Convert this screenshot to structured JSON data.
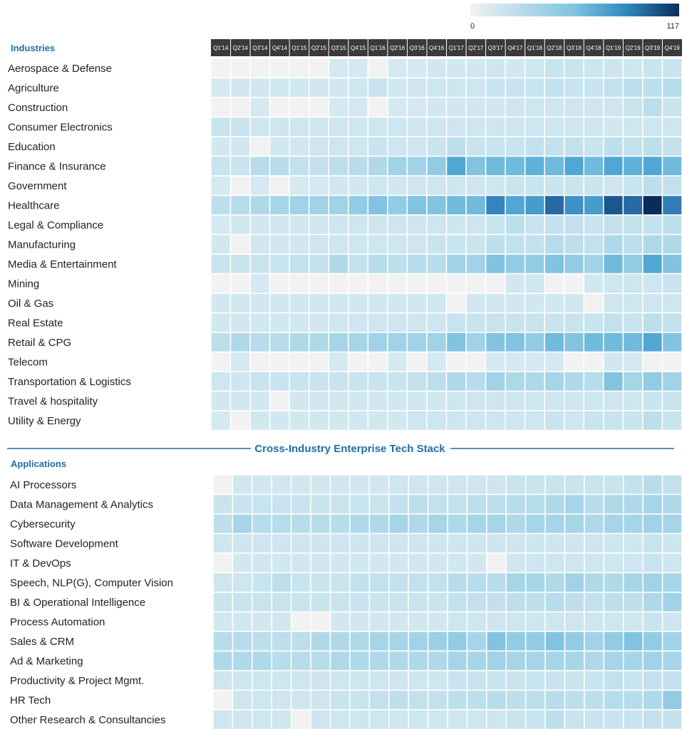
{
  "chart_data": {
    "type": "heatmap",
    "columns": [
      "Q1'14",
      "Q2'14",
      "Q3'14",
      "Q4'14",
      "Q1'15",
      "Q2'15",
      "Q3'15",
      "Q4'15",
      "Q1'16",
      "Q2'16",
      "Q3'16",
      "Q4'16",
      "Q1'17",
      "Q2'17",
      "Q3'17",
      "Q4'17",
      "Q1'18",
      "Q2'18",
      "Q3'18",
      "Q4'18",
      "Q1'19",
      "Q2'19",
      "Q3'19",
      "Q4'19"
    ],
    "color_scale": {
      "min": 0,
      "max": 117,
      "min_label": "0",
      "max_label": "117",
      "low_color": "#f2f2f2",
      "high_color": "#0b2e5c"
    },
    "divider_title": "Cross-Industry Enterprise Tech Stack",
    "sections": [
      {
        "title": "Industries",
        "rows": [
          {
            "label": "Aerospace & Defense",
            "values": [
              0,
              0,
              0,
              0,
              0,
              0,
              8,
              8,
              0,
              8,
              8,
              10,
              10,
              10,
              12,
              10,
              12,
              15,
              15,
              13,
              13,
              12,
              15,
              15
            ]
          },
          {
            "label": "Agriculture",
            "values": [
              8,
              10,
              10,
              10,
              10,
              10,
              10,
              12,
              15,
              10,
              12,
              12,
              12,
              12,
              15,
              15,
              15,
              18,
              15,
              15,
              18,
              20,
              20,
              22
            ]
          },
          {
            "label": "Construction",
            "values": [
              0,
              0,
              8,
              0,
              0,
              0,
              8,
              8,
              0,
              8,
              8,
              10,
              10,
              10,
              10,
              12,
              12,
              12,
              12,
              12,
              12,
              15,
              20,
              15
            ]
          },
          {
            "label": "Consumer Electronics",
            "values": [
              15,
              15,
              12,
              12,
              12,
              12,
              12,
              12,
              12,
              12,
              12,
              12,
              12,
              12,
              12,
              12,
              12,
              12,
              12,
              12,
              10,
              12,
              12,
              12
            ]
          },
          {
            "label": "Education",
            "values": [
              10,
              10,
              0,
              10,
              10,
              12,
              12,
              12,
              15,
              12,
              12,
              15,
              20,
              15,
              15,
              15,
              18,
              18,
              18,
              15,
              20,
              18,
              20,
              18
            ]
          },
          {
            "label": "Finance & Insurance",
            "values": [
              15,
              15,
              22,
              22,
              18,
              18,
              20,
              22,
              25,
              30,
              30,
              35,
              55,
              40,
              45,
              45,
              50,
              45,
              55,
              45,
              55,
              50,
              55,
              45
            ]
          },
          {
            "label": "Government",
            "values": [
              8,
              0,
              8,
              0,
              8,
              8,
              10,
              10,
              12,
              10,
              12,
              12,
              12,
              12,
              12,
              15,
              15,
              15,
              15,
              15,
              12,
              15,
              20,
              18
            ]
          },
          {
            "label": "Healthcare",
            "values": [
              20,
              22,
              25,
              28,
              30,
              30,
              30,
              35,
              40,
              35,
              40,
              40,
              45,
              45,
              70,
              55,
              60,
              85,
              65,
              60,
              95,
              85,
              117,
              75
            ]
          },
          {
            "label": "Legal & Compliance",
            "values": [
              8,
              10,
              10,
              10,
              10,
              10,
              12,
              12,
              12,
              12,
              12,
              12,
              12,
              12,
              15,
              20,
              15,
              18,
              18,
              15,
              18,
              18,
              18,
              20
            ]
          },
          {
            "label": "Manufacturing",
            "values": [
              10,
              0,
              10,
              10,
              10,
              12,
              12,
              12,
              12,
              12,
              12,
              15,
              15,
              15,
              20,
              18,
              18,
              22,
              20,
              18,
              25,
              20,
              25,
              25
            ]
          },
          {
            "label": "Media & Entertainment",
            "values": [
              15,
              15,
              15,
              15,
              18,
              18,
              25,
              18,
              22,
              20,
              22,
              22,
              30,
              30,
              40,
              35,
              35,
              40,
              35,
              30,
              45,
              35,
              55,
              40
            ]
          },
          {
            "label": "Mining",
            "values": [
              0,
              0,
              8,
              0,
              0,
              0,
              0,
              0,
              0,
              0,
              0,
              0,
              0,
              0,
              0,
              10,
              10,
              0,
              0,
              10,
              12,
              12,
              12,
              15
            ]
          },
          {
            "label": "Oil & Gas",
            "values": [
              10,
              10,
              10,
              10,
              10,
              10,
              10,
              10,
              10,
              10,
              10,
              10,
              0,
              10,
              10,
              10,
              10,
              10,
              10,
              0,
              12,
              12,
              12,
              12
            ]
          },
          {
            "label": "Real Estate",
            "values": [
              10,
              10,
              10,
              10,
              10,
              10,
              12,
              12,
              12,
              12,
              12,
              12,
              15,
              15,
              15,
              15,
              15,
              15,
              15,
              15,
              18,
              15,
              20,
              18
            ]
          },
          {
            "label": "Retail & CPG",
            "values": [
              20,
              25,
              22,
              22,
              25,
              25,
              28,
              28,
              30,
              30,
              30,
              30,
              40,
              30,
              40,
              40,
              35,
              45,
              40,
              45,
              45,
              45,
              55,
              40
            ]
          },
          {
            "label": "Telecom",
            "values": [
              0,
              8,
              0,
              0,
              0,
              0,
              8,
              0,
              0,
              8,
              0,
              8,
              0,
              0,
              8,
              8,
              8,
              8,
              0,
              0,
              10,
              8,
              0,
              0
            ]
          },
          {
            "label": "Transportation & Logistics",
            "values": [
              12,
              12,
              15,
              15,
              15,
              15,
              15,
              15,
              15,
              15,
              18,
              20,
              25,
              22,
              30,
              25,
              25,
              28,
              25,
              22,
              40,
              28,
              35,
              30
            ]
          },
          {
            "label": "Travel & hospitality",
            "values": [
              10,
              10,
              10,
              0,
              10,
              10,
              10,
              10,
              10,
              10,
              10,
              10,
              12,
              12,
              12,
              12,
              12,
              12,
              12,
              12,
              12,
              12,
              15,
              15
            ]
          },
          {
            "label": "Utility & Energy",
            "values": [
              8,
              0,
              10,
              10,
              10,
              10,
              10,
              10,
              10,
              10,
              12,
              12,
              12,
              12,
              12,
              12,
              12,
              15,
              12,
              15,
              15,
              15,
              20,
              15
            ]
          }
        ]
      },
      {
        "title": "Applications",
        "rows": [
          {
            "label": "AI Processors",
            "values": [
              0,
              10,
              10,
              10,
              10,
              10,
              10,
              10,
              10,
              12,
              12,
              12,
              12,
              12,
              12,
              15,
              15,
              15,
              15,
              15,
              15,
              18,
              22,
              18
            ]
          },
          {
            "label": "Data Management & Analytics",
            "values": [
              15,
              15,
              15,
              15,
              15,
              15,
              15,
              15,
              15,
              18,
              20,
              18,
              18,
              20,
              20,
              22,
              22,
              25,
              28,
              22,
              25,
              25,
              28,
              25
            ]
          },
          {
            "label": "Cybersecurity",
            "values": [
              20,
              28,
              22,
              22,
              22,
              22,
              22,
              25,
              25,
              28,
              25,
              28,
              25,
              28,
              28,
              25,
              28,
              28,
              28,
              25,
              28,
              28,
              30,
              28
            ]
          },
          {
            "label": "Software Development",
            "values": [
              12,
              12,
              12,
              12,
              12,
              12,
              12,
              12,
              12,
              12,
              12,
              12,
              12,
              12,
              12,
              12,
              12,
              12,
              12,
              12,
              12,
              12,
              15,
              12
            ]
          },
          {
            "label": "IT & DevOps",
            "values": [
              0,
              10,
              10,
              10,
              10,
              10,
              10,
              10,
              10,
              10,
              10,
              10,
              10,
              10,
              0,
              12,
              12,
              12,
              12,
              12,
              12,
              12,
              15,
              12
            ]
          },
          {
            "label": "Speech, NLP(G), Computer Vision",
            "values": [
              12,
              12,
              15,
              20,
              15,
              15,
              15,
              18,
              18,
              18,
              18,
              18,
              22,
              22,
              22,
              28,
              28,
              25,
              30,
              25,
              25,
              28,
              30,
              28
            ]
          },
          {
            "label": "BI & Operational Intelligence",
            "values": [
              15,
              15,
              15,
              15,
              15,
              15,
              15,
              15,
              15,
              15,
              15,
              15,
              18,
              18,
              18,
              20,
              20,
              22,
              20,
              18,
              20,
              20,
              25,
              30
            ]
          },
          {
            "label": "Process Automation",
            "values": [
              10,
              10,
              10,
              10,
              0,
              0,
              10,
              10,
              10,
              10,
              10,
              10,
              12,
              12,
              12,
              12,
              12,
              12,
              12,
              12,
              12,
              12,
              15,
              12
            ]
          },
          {
            "label": "Sales & CRM",
            "values": [
              22,
              22,
              20,
              20,
              20,
              25,
              25,
              25,
              28,
              28,
              30,
              32,
              35,
              28,
              40,
              35,
              35,
              40,
              35,
              30,
              35,
              40,
              35,
              30
            ]
          },
          {
            "label": "Ad & Marketing",
            "values": [
              25,
              25,
              25,
              22,
              22,
              22,
              25,
              25,
              25,
              25,
              25,
              25,
              28,
              28,
              30,
              28,
              28,
              28,
              28,
              25,
              28,
              28,
              30,
              28
            ]
          },
          {
            "label": "Productivity & Project Mgmt.",
            "values": [
              12,
              12,
              12,
              12,
              12,
              12,
              12,
              12,
              12,
              12,
              12,
              12,
              15,
              15,
              15,
              15,
              15,
              15,
              15,
              15,
              18,
              15,
              18,
              18
            ]
          },
          {
            "label": "HR Tech",
            "values": [
              0,
              12,
              12,
              12,
              12,
              12,
              15,
              15,
              18,
              20,
              18,
              18,
              20,
              20,
              22,
              20,
              20,
              22,
              20,
              20,
              22,
              22,
              25,
              35
            ]
          },
          {
            "label": "Other Research & Consultancies",
            "values": [
              12,
              12,
              12,
              12,
              0,
              12,
              12,
              12,
              12,
              12,
              12,
              12,
              12,
              12,
              12,
              15,
              15,
              20,
              15,
              15,
              15,
              15,
              18,
              18
            ]
          }
        ]
      }
    ]
  }
}
